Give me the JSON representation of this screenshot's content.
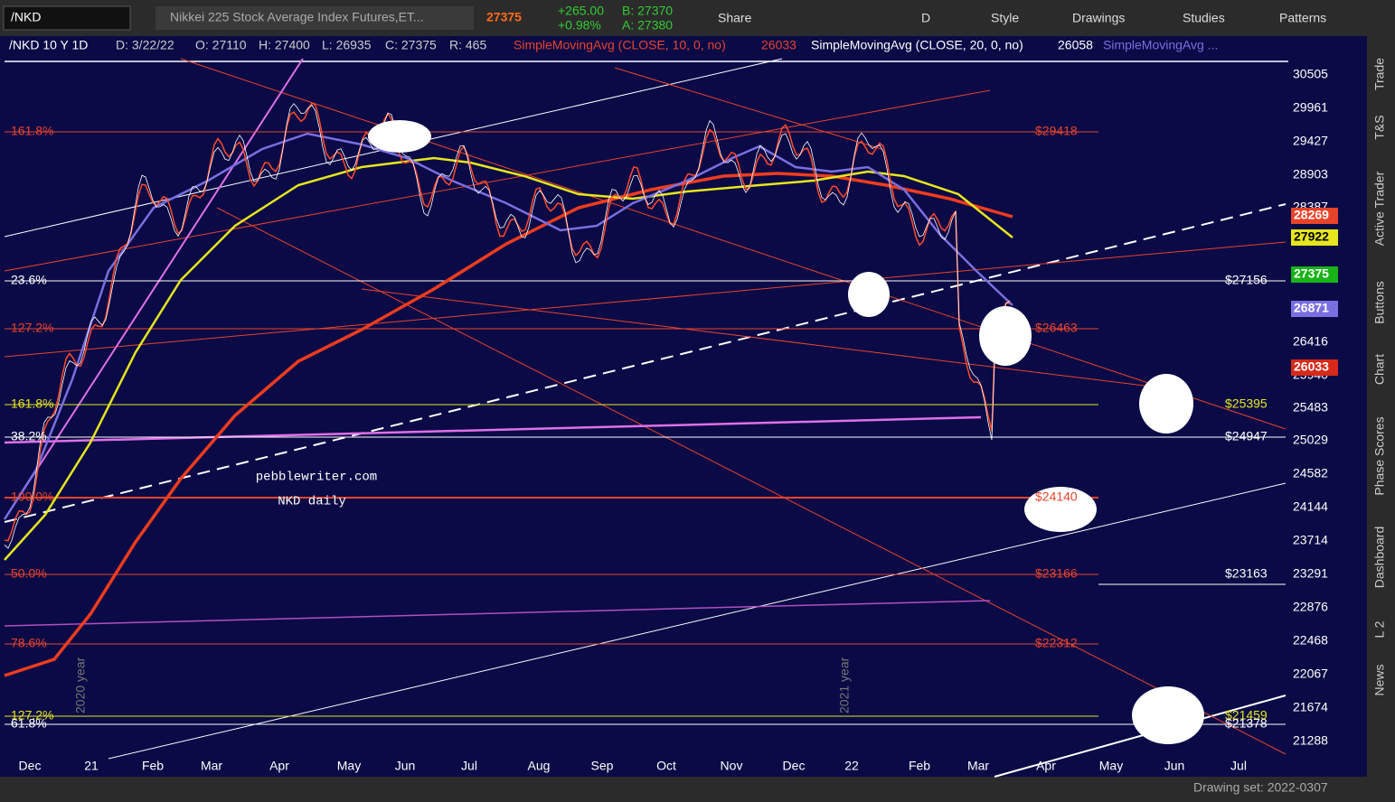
{
  "toolbar": {
    "symbol": "/NKD",
    "description": "Nikkei 225 Stock Average Index Futures,ET...",
    "last": "27375",
    "change": "+265.00",
    "change_pct": "+0.98%",
    "bid": "B: 27370",
    "ask": "A: 27380",
    "buttons": [
      "Share",
      "D",
      "Style",
      "Drawings",
      "Studies",
      "Patterns"
    ]
  },
  "info_bar": {
    "chart": "/NKD 10 Y 1D",
    "date": "D: 3/22/22",
    "open": "O: 27110",
    "high": "H: 27400",
    "low": "L: 26935",
    "close": "C: 27375",
    "range": "R: 465",
    "studies": [
      {
        "name": "SimpleMovingAvg (CLOSE, 10, 0, no)",
        "value": "26033"
      },
      {
        "name": "SimpleMovingAvg (CLOSE, 20, 0, no)",
        "value": "26058"
      },
      {
        "name": "SimpleMovingAvg ..."
      }
    ]
  },
  "price_axis": {
    "ticks": [
      "30505",
      "29961",
      "29427",
      "28903",
      "28387",
      "26416",
      "25940",
      "25483",
      "25029",
      "24582",
      "24144",
      "23714",
      "23291",
      "22876",
      "22468",
      "22067",
      "21674",
      "21288"
    ],
    "badges": [
      {
        "text": "28269",
        "color": "#e8442b"
      },
      {
        "text": "27922",
        "color": "#e6e61e"
      },
      {
        "text": "27375",
        "color": "#17b317"
      },
      {
        "text": "26871",
        "color": "#7a6fe0"
      },
      {
        "text": "26033",
        "color": "#d52a1a"
      }
    ]
  },
  "time_axis": {
    "labels": [
      "Dec",
      "21",
      "Feb",
      "Mar",
      "Apr",
      "May",
      "Jun",
      "Jul",
      "Aug",
      "Sep",
      "Oct",
      "Nov",
      "Dec",
      "22",
      "Feb",
      "Mar",
      "Apr",
      "May",
      "Jun",
      "Jul"
    ],
    "year_markers": [
      "2020 year",
      "2021 year"
    ]
  },
  "levels": {
    "left": [
      "161.8%",
      "23.6%",
      "127.2%",
      "161.8%",
      "38.2%",
      "100.0%",
      "50.0%",
      "78.6%",
      "127.2%",
      "61.8%"
    ],
    "right": [
      "$29418",
      "$27156",
      "$26463",
      "$25395",
      "$24947",
      "$24140",
      "$23166",
      "$23163",
      "$22312",
      "$21459",
      "$21378"
    ]
  },
  "watermark": {
    "site": "pebblewriter.com",
    "caption": "NKD daily"
  },
  "sidebar": [
    "Trade",
    "T&S",
    "Active Trader",
    "Buttons",
    "Chart",
    "Phase Scores",
    "Dashboard",
    "L 2",
    "News"
  ],
  "status_bar": {
    "drawing_set": "Drawing set: 2022-0307"
  }
}
